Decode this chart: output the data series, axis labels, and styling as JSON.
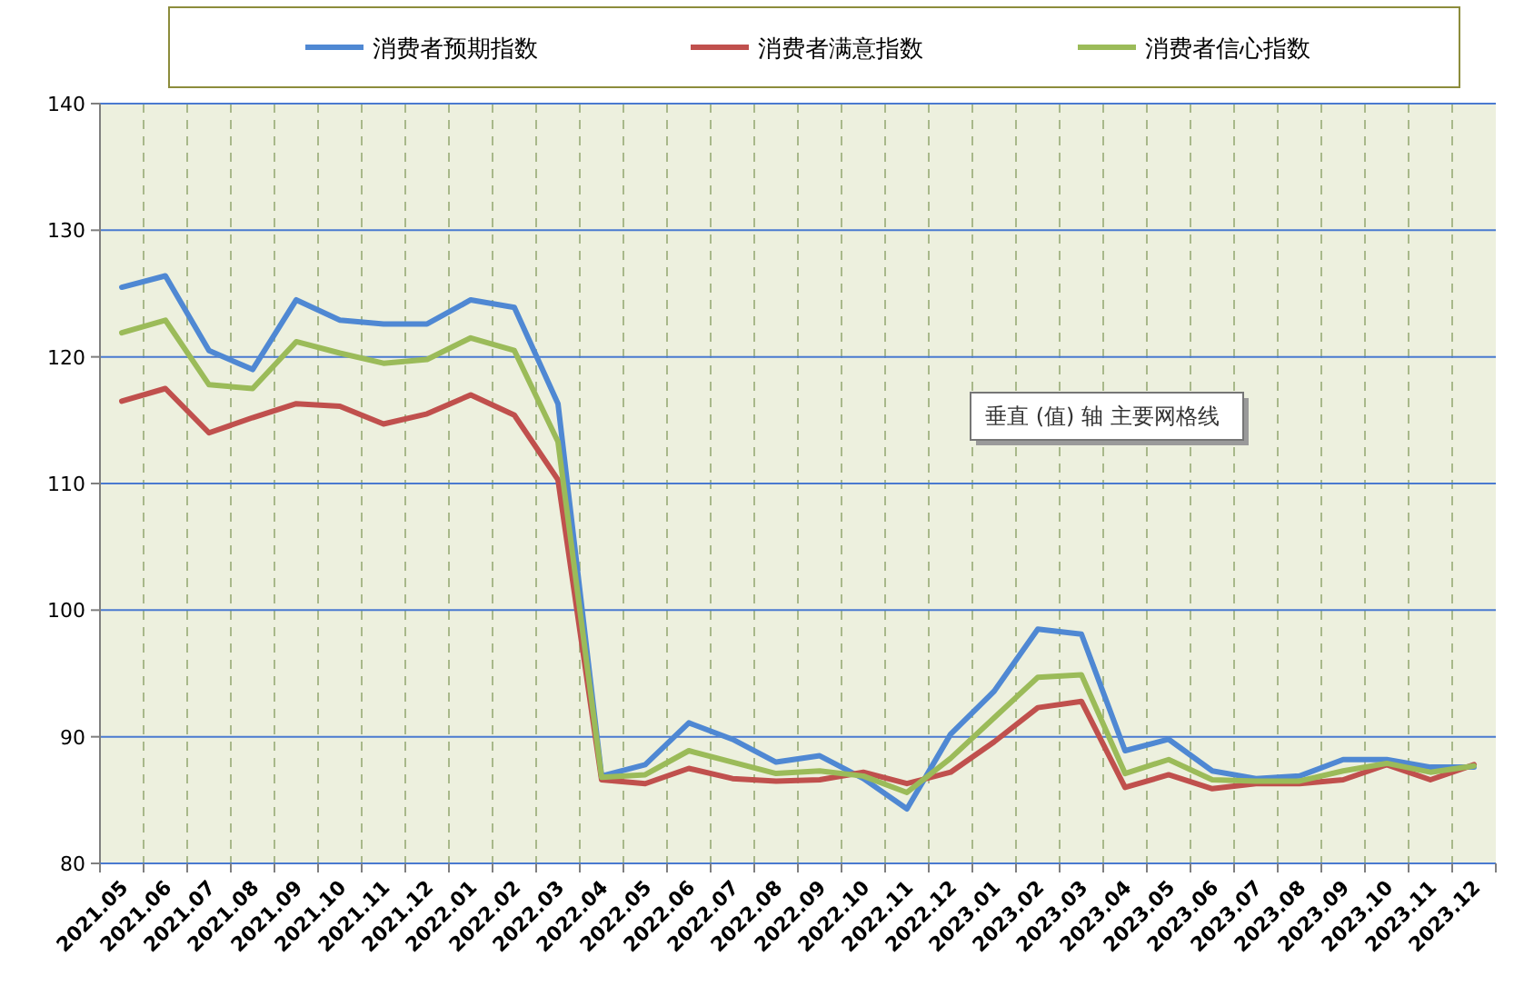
{
  "chart_data": {
    "type": "line",
    "categories": [
      "2021.05",
      "2021.06",
      "2021.07",
      "2021.08",
      "2021.09",
      "2021.10",
      "2021.11",
      "2021.12",
      "2022.01",
      "2022.02",
      "2022.03",
      "2022.04",
      "2022.05",
      "2022.06",
      "2022.07",
      "2022.08",
      "2022.09",
      "2022.10",
      "2022.11",
      "2022.12",
      "2023.01",
      "2023.02",
      "2023.03",
      "2023.04",
      "2023.05",
      "2023.06",
      "2023.07",
      "2023.08",
      "2023.09",
      "2023.10",
      "2023.11",
      "2023.12"
    ],
    "series": [
      {
        "name": "消费者预期指数",
        "color": "#4f88d3",
        "values": [
          125.5,
          126.4,
          120.5,
          119.0,
          124.5,
          122.9,
          122.6,
          122.6,
          124.5,
          123.9,
          116.3,
          86.9,
          87.8,
          91.1,
          89.8,
          88.0,
          88.5,
          86.7,
          84.3,
          90.2,
          93.6,
          98.5,
          98.1,
          88.9,
          89.8,
          87.3,
          86.7,
          86.9,
          88.2,
          88.2,
          87.6,
          87.6
        ]
      },
      {
        "name": "消费者满意指数",
        "color": "#c0504d",
        "values": [
          116.5,
          117.5,
          114.0,
          115.2,
          116.3,
          116.1,
          114.7,
          115.5,
          117.0,
          115.4,
          110.3,
          86.6,
          86.3,
          87.5,
          86.7,
          86.5,
          86.6,
          87.2,
          86.3,
          87.2,
          89.6,
          92.3,
          92.8,
          86.0,
          87.0,
          85.9,
          86.3,
          86.3,
          86.6,
          87.8,
          86.6,
          87.8
        ]
      },
      {
        "name": "消费者信心指数",
        "color": "#9bbb59",
        "values": [
          121.9,
          122.9,
          117.8,
          117.5,
          121.2,
          120.3,
          119.5,
          119.8,
          121.5,
          120.5,
          113.3,
          86.8,
          87.0,
          88.9,
          88.0,
          87.1,
          87.3,
          86.9,
          85.6,
          88.3,
          91.5,
          94.7,
          94.9,
          87.1,
          88.2,
          86.6,
          86.5,
          86.5,
          87.3,
          87.9,
          87.2,
          87.7
        ]
      }
    ],
    "ylim": [
      80,
      140
    ],
    "yticks": [
      80,
      90,
      100,
      110,
      120,
      130,
      140
    ],
    "grid": true,
    "legend": "top",
    "marker": "none",
    "line_style": "solid",
    "annotations": [
      "垂直 (值) 轴 主要网格线"
    ]
  }
}
